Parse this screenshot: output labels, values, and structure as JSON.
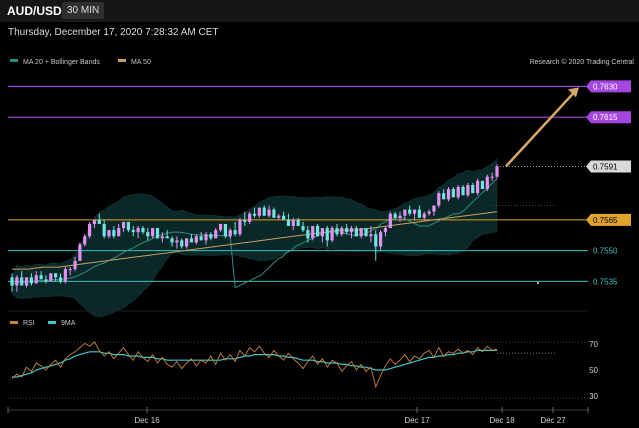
{
  "header": {
    "symbol": "AUD/USD",
    "timeframe": "30 MIN",
    "datetime": "Thursday, December 17, 2020 7:28:32 AM CET",
    "credit": "Research © 2020 Trading Central"
  },
  "colors": {
    "bg": "#000000",
    "up": "#e391f1",
    "down": "#6fe3df",
    "ma20": "#2a8f86",
    "ma50": "#c9a05b",
    "band": "#0c2b2b",
    "purple": "#a447e0",
    "orange": "#e0a32a",
    "teal": "#35c2c2",
    "arrow": "#d8a86a"
  },
  "chart_data": [
    {
      "type": "candlestick",
      "legend": [
        {
          "name": "MA 20 + Bollinger Bands",
          "color": "#2a8f86"
        },
        {
          "name": "MA 50",
          "color": "#c9a05b"
        }
      ],
      "yrange": [
        0.7524,
        0.7638
      ],
      "xrange": [
        0,
        107
      ],
      "candles": [
        [
          0.7537,
          0.7539,
          0.753,
          0.7533
        ],
        [
          0.7533,
          0.7538,
          0.753,
          0.7537
        ],
        [
          0.7537,
          0.754,
          0.7533,
          0.7533
        ],
        [
          0.7533,
          0.7537,
          0.7532,
          0.7537
        ],
        [
          0.7537,
          0.7539,
          0.7533,
          0.7534
        ],
        [
          0.7534,
          0.754,
          0.7534,
          0.7538
        ],
        [
          0.7538,
          0.754,
          0.7536,
          0.7536
        ],
        [
          0.7536,
          0.7538,
          0.7534,
          0.7535
        ],
        [
          0.7535,
          0.7539,
          0.7535,
          0.7539
        ],
        [
          0.7539,
          0.7539,
          0.7535,
          0.7537
        ],
        [
          0.7537,
          0.7539,
          0.7534,
          0.7535
        ],
        [
          0.7535,
          0.7542,
          0.7534,
          0.7541
        ],
        [
          0.7541,
          0.7542,
          0.7538,
          0.7541
        ],
        [
          0.7541,
          0.7547,
          0.754,
          0.7545
        ],
        [
          0.7545,
          0.7554,
          0.7545,
          0.7553
        ],
        [
          0.7553,
          0.7558,
          0.7552,
          0.7557
        ],
        [
          0.7557,
          0.7564,
          0.7556,
          0.7563
        ],
        [
          0.7563,
          0.7565,
          0.7561,
          0.7565
        ],
        [
          0.7565,
          0.7568,
          0.7563,
          0.7563
        ],
        [
          0.7563,
          0.7565,
          0.7556,
          0.7557
        ],
        [
          0.7557,
          0.756,
          0.7556,
          0.756
        ],
        [
          0.756,
          0.7562,
          0.7556,
          0.7557
        ],
        [
          0.7557,
          0.7563,
          0.7557,
          0.7561
        ],
        [
          0.7561,
          0.7564,
          0.7559,
          0.7564
        ],
        [
          0.7564,
          0.7564,
          0.7559,
          0.756
        ],
        [
          0.756,
          0.7562,
          0.7557,
          0.7559
        ],
        [
          0.7559,
          0.7562,
          0.7556,
          0.7561
        ],
        [
          0.7561,
          0.7562,
          0.7558,
          0.7559
        ],
        [
          0.7559,
          0.7561,
          0.7555,
          0.7557
        ],
        [
          0.7557,
          0.7561,
          0.7556,
          0.7561
        ],
        [
          0.7561,
          0.7561,
          0.7556,
          0.7556
        ],
        [
          0.7556,
          0.7559,
          0.7554,
          0.7557
        ],
        [
          0.7557,
          0.756,
          0.7556,
          0.7556
        ],
        [
          0.7556,
          0.7557,
          0.7552,
          0.7554
        ],
        [
          0.7554,
          0.7557,
          0.7551,
          0.7555
        ],
        [
          0.7555,
          0.7556,
          0.7551,
          0.7552
        ],
        [
          0.7552,
          0.7556,
          0.7551,
          0.7556
        ],
        [
          0.7556,
          0.7558,
          0.7554,
          0.7554
        ],
        [
          0.7554,
          0.7558,
          0.7553,
          0.7557
        ],
        [
          0.7557,
          0.7559,
          0.7555,
          0.7555
        ],
        [
          0.7555,
          0.7559,
          0.7553,
          0.7558
        ],
        [
          0.7558,
          0.7559,
          0.7555,
          0.7556
        ],
        [
          0.7556,
          0.7561,
          0.7556,
          0.756
        ],
        [
          0.756,
          0.7563,
          0.7559,
          0.7563
        ],
        [
          0.7563,
          0.7563,
          0.7556,
          0.7557
        ],
        [
          0.7557,
          0.7561,
          0.7556,
          0.756
        ],
        [
          0.756,
          0.7564,
          0.7557,
          0.7558
        ],
        [
          0.7558,
          0.7566,
          0.7557,
          0.7565
        ],
        [
          0.7565,
          0.7569,
          0.7562,
          0.7564
        ],
        [
          0.7564,
          0.7569,
          0.7563,
          0.7568
        ],
        [
          0.7568,
          0.7571,
          0.7566,
          0.7567
        ],
        [
          0.7567,
          0.7571,
          0.7566,
          0.7571
        ],
        [
          0.7571,
          0.7572,
          0.7567,
          0.7567
        ],
        [
          0.7567,
          0.7572,
          0.7566,
          0.757
        ],
        [
          0.757,
          0.7571,
          0.7566,
          0.7566
        ],
        [
          0.7566,
          0.7568,
          0.7565,
          0.7567
        ],
        [
          0.7567,
          0.7569,
          0.7565,
          0.7565
        ],
        [
          0.7565,
          0.7568,
          0.7562,
          0.7562
        ],
        [
          0.7562,
          0.7566,
          0.756,
          0.7565
        ],
        [
          0.7565,
          0.7566,
          0.7562,
          0.7562
        ],
        [
          0.7562,
          0.7564,
          0.7559,
          0.756
        ],
        [
          0.756,
          0.7562,
          0.7554,
          0.7556
        ],
        [
          0.7556,
          0.7562,
          0.7555,
          0.7562
        ],
        [
          0.7562,
          0.7563,
          0.7557,
          0.7557
        ],
        [
          0.7557,
          0.7561,
          0.7554,
          0.7561
        ],
        [
          0.7561,
          0.7562,
          0.7552,
          0.7555
        ],
        [
          0.7555,
          0.7562,
          0.7554,
          0.7561
        ],
        [
          0.7561,
          0.7563,
          0.7557,
          0.7558
        ],
        [
          0.7558,
          0.7562,
          0.7557,
          0.7561
        ],
        [
          0.7561,
          0.7563,
          0.7558,
          0.7559
        ],
        [
          0.7559,
          0.7562,
          0.7556,
          0.7561
        ],
        [
          0.7561,
          0.7562,
          0.7557,
          0.7557
        ],
        [
          0.7557,
          0.7561,
          0.7556,
          0.7561
        ],
        [
          0.7561,
          0.7561,
          0.7557,
          0.7557
        ],
        [
          0.7557,
          0.7562,
          0.7554,
          0.7558
        ],
        [
          0.7558,
          0.756,
          0.7545,
          0.7552
        ],
        [
          0.7552,
          0.756,
          0.755,
          0.7559
        ],
        [
          0.7559,
          0.7562,
          0.7557,
          0.7561
        ],
        [
          0.7561,
          0.7569,
          0.7561,
          0.7568
        ],
        [
          0.7568,
          0.7569,
          0.7565,
          0.7566
        ],
        [
          0.7566,
          0.7569,
          0.7564,
          0.7567
        ],
        [
          0.7567,
          0.757,
          0.7565,
          0.757
        ],
        [
          0.757,
          0.7572,
          0.7567,
          0.7568
        ],
        [
          0.7568,
          0.757,
          0.7565,
          0.757
        ],
        [
          0.757,
          0.7572,
          0.7566,
          0.7566
        ],
        [
          0.7566,
          0.7569,
          0.7565,
          0.7568
        ],
        [
          0.7568,
          0.757,
          0.7567,
          0.7569
        ],
        [
          0.7569,
          0.7572,
          0.7567,
          0.7572
        ],
        [
          0.7572,
          0.7579,
          0.7571,
          0.7578
        ],
        [
          0.7578,
          0.758,
          0.7575,
          0.7575
        ],
        [
          0.7575,
          0.7581,
          0.7574,
          0.758
        ],
        [
          0.758,
          0.7581,
          0.7576,
          0.7576
        ],
        [
          0.7576,
          0.7582,
          0.7575,
          0.7581
        ],
        [
          0.7581,
          0.7582,
          0.7577,
          0.7577
        ],
        [
          0.7577,
          0.7583,
          0.7576,
          0.7582
        ],
        [
          0.7582,
          0.7583,
          0.7578,
          0.7578
        ],
        [
          0.7578,
          0.7585,
          0.7577,
          0.7584
        ],
        [
          0.7584,
          0.7584,
          0.758,
          0.758
        ],
        [
          0.758,
          0.7587,
          0.7579,
          0.7586
        ],
        [
          0.7586,
          0.7588,
          0.7584,
          0.7586
        ],
        [
          0.7586,
          0.7592,
          0.7585,
          0.7591
        ]
      ],
      "ma20": [
        0.7532,
        0.7533,
        0.7534,
        0.7535,
        0.7536,
        0.7537,
        0.7538,
        0.754,
        0.7542,
        0.7544,
        0.7546,
        0.7547,
        0.7549,
        0.755,
        0.7552,
        0.7553,
        0.7554,
        0.7555,
        0.7556,
        0.7557,
        0.7558,
        0.7559,
        0.7559,
        0.7559,
        0.756,
        0.7559,
        0.7558,
        0.7558,
        0.7557,
        0.7558,
        0.7558,
        0.7559,
        0.756,
        0.7561,
        0.7563,
        0.7564,
        0.7565,
        0.7566,
        0.7566,
        0.7566,
        0.7565,
        0.7564,
        0.7563,
        0.7562,
        0.7562,
        0.7562,
        0.7563,
        0.7564,
        0.7565,
        0.7566,
        0.7567,
        0.7568,
        0.7568,
        0.7569,
        0.7571,
        0.7573,
        0.7575,
        0.7577,
        0.7579,
        0.7581,
        0.7583,
        0.7585
      ],
      "ma20_x0": 46,
      "ma50": [
        0.7541,
        0.7541,
        0.7542,
        0.7542,
        0.7543,
        0.7544,
        0.7545,
        0.7546,
        0.7547,
        0.7548,
        0.7549,
        0.755,
        0.7551,
        0.7552,
        0.7553,
        0.7554,
        0.7555,
        0.7556,
        0.7557,
        0.7558,
        0.7559,
        0.756,
        0.756,
        0.7561,
        0.7562,
        0.7563,
        0.7564,
        0.7565,
        0.7566,
        0.7567,
        0.7568,
        0.7569
      ],
      "levels": [
        {
          "value": 0.763,
          "label": "0.7630",
          "kind": "resistance"
        },
        {
          "value": 0.7615,
          "label": "0.7615",
          "kind": "resistance"
        },
        {
          "value": 0.7591,
          "label": "0.7591",
          "kind": "last"
        },
        {
          "value": 0.7565,
          "label": "0.7565",
          "kind": "pivot"
        },
        {
          "value": 0.755,
          "label": "0.7550",
          "kind": "support"
        },
        {
          "value": 0.7535,
          "label": "0.7535",
          "kind": "support"
        }
      ],
      "projection": {
        "from": [
          101,
          0.7591
        ],
        "to": [
          113,
          0.763
        ]
      }
    },
    {
      "type": "line",
      "legend": [
        {
          "name": "RSI",
          "color": "#c8843b"
        },
        {
          "name": "9MA",
          "color": "#3fc8d2"
        }
      ],
      "yrange": [
        24,
        76
      ],
      "yticks": [
        "70",
        "50",
        "30"
      ],
      "rsi": [
        44,
        47,
        45,
        52,
        49,
        55,
        53,
        50,
        54,
        57,
        52,
        58,
        61,
        63,
        66,
        69,
        67,
        70,
        64,
        60,
        63,
        58,
        62,
        66,
        61,
        57,
        63,
        59,
        56,
        61,
        55,
        59,
        54,
        52,
        56,
        51,
        55,
        58,
        53,
        57,
        55,
        60,
        54,
        62,
        57,
        61,
        56,
        64,
        60,
        66,
        63,
        67,
        62,
        59,
        64,
        60,
        57,
        62,
        58,
        55,
        51,
        56,
        60,
        54,
        58,
        52,
        57,
        55,
        49,
        53,
        56,
        50,
        54,
        49,
        52,
        38,
        46,
        53,
        58,
        54,
        57,
        61,
        56,
        60,
        58,
        62,
        64,
        59,
        66,
        60,
        63,
        62,
        65,
        62,
        64,
        61,
        66,
        63,
        67,
        64,
        65
      ],
      "ma9": [
        45,
        45,
        46,
        47,
        48,
        50,
        51,
        52,
        53,
        54,
        55,
        57,
        58,
        60,
        61,
        62,
        63,
        63,
        63,
        62,
        62,
        61,
        61,
        61,
        60,
        60,
        60,
        59,
        59,
        59,
        58,
        58,
        57,
        57,
        57,
        57,
        57,
        57,
        57,
        57,
        57,
        57,
        57,
        57,
        58,
        58,
        58,
        59,
        60,
        60,
        61,
        61,
        61,
        61,
        61,
        60,
        60,
        59,
        59,
        58,
        57,
        57,
        57,
        56,
        56,
        55,
        55,
        55,
        54,
        54,
        53,
        53,
        52,
        52,
        51,
        50,
        50,
        50,
        51,
        52,
        53,
        54,
        55,
        56,
        57,
        58,
        59,
        59,
        60,
        60,
        61,
        61,
        62,
        62,
        63,
        63,
        64,
        64,
        64,
        64,
        64
      ]
    }
  ],
  "xaxis": {
    "labels": [
      "Dec 16",
      "Dec 17",
      "Dec 18",
      "Dec 27"
    ]
  }
}
